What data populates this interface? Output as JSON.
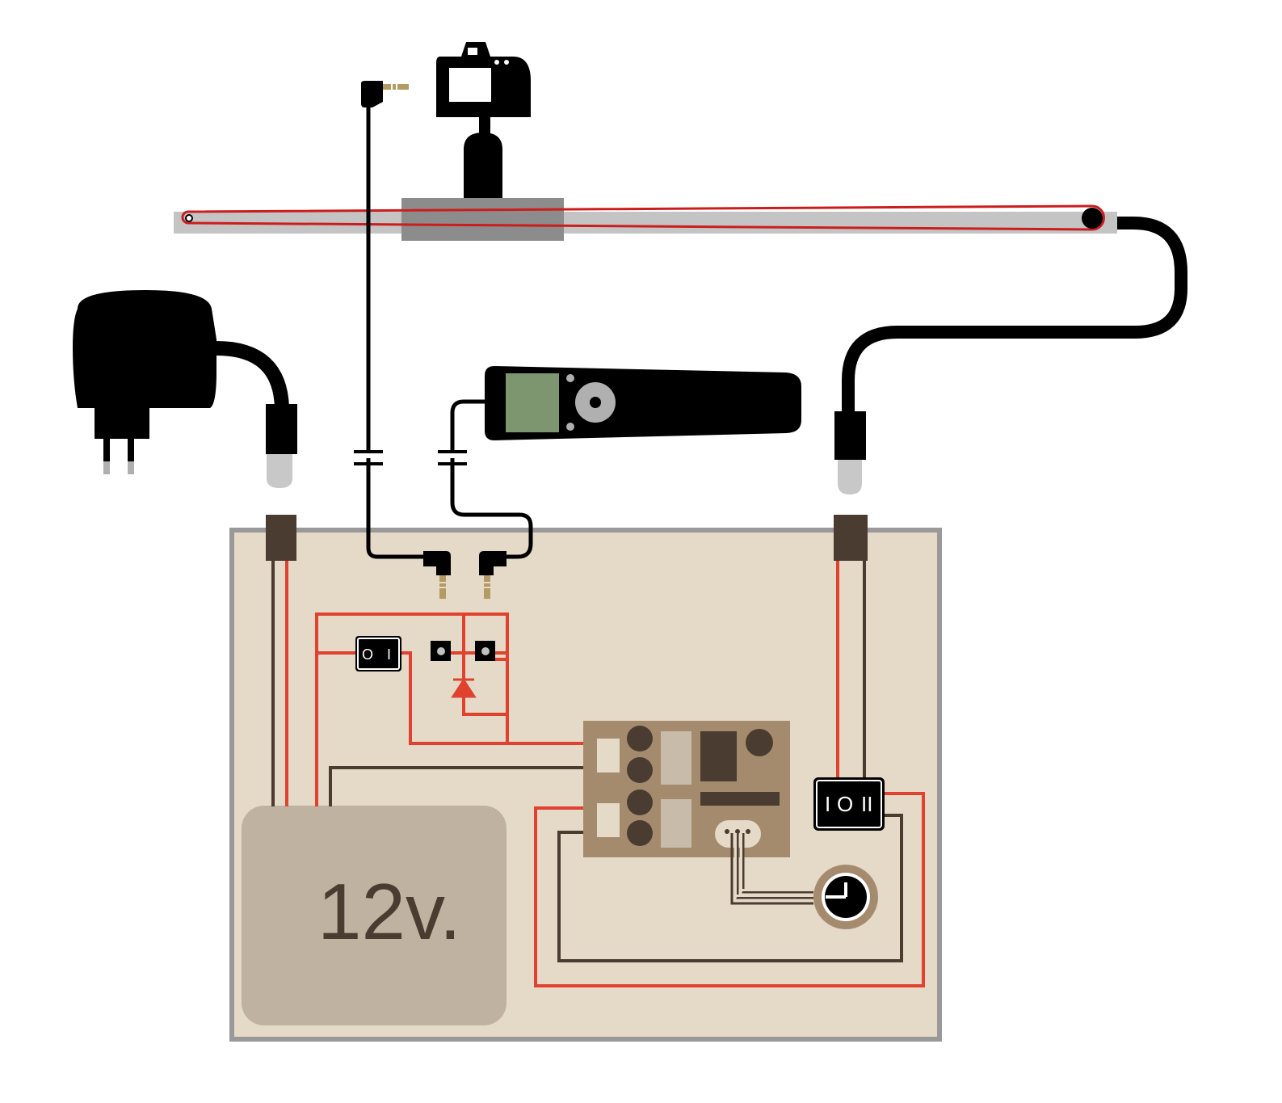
{
  "battery": {
    "label": "12v."
  },
  "main_switch": {
    "off_label": "O",
    "on_label": "I"
  },
  "direction_switch": {
    "label_1": "I",
    "label_0": "O",
    "label_2": "II"
  },
  "colors": {
    "wire_red": "#e1412f",
    "wire_dark": "#4a3c30",
    "enclosure_fill": "#e5d9c8",
    "enclosure_border": "#999999",
    "battery_fill": "#bfb2a1",
    "board_fill": "#a58b6e",
    "rail_fill": "#c4c4c4",
    "carriage_fill": "#8c8c8c",
    "remote_screen": "#7e9670",
    "belt": "#cc1d1d",
    "jack_tip": "#b49a63"
  }
}
